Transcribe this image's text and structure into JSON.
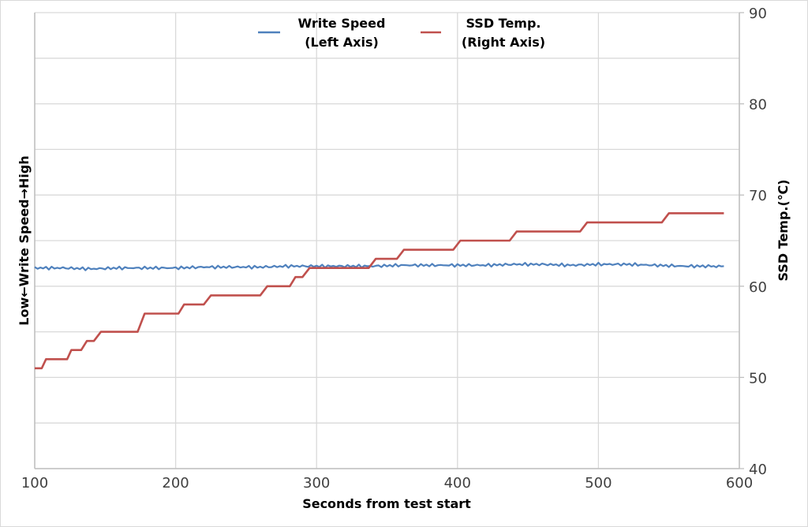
{
  "chart_data": {
    "type": "line",
    "title": "",
    "xlabel": "Seconds from test start",
    "ylabel_left": "Low←Write Speed→High",
    "ylabel_right": "SSD Temp.(℃)",
    "xlim": [
      100,
      600
    ],
    "x_ticks": [
      100,
      200,
      300,
      400,
      500,
      600
    ],
    "ylim_right": [
      40,
      90
    ],
    "y_ticks_right": [
      40,
      50,
      60,
      70,
      80,
      90
    ],
    "grid": true,
    "gridline_step_right": 5,
    "legend_position": "top-center",
    "legend": [
      {
        "name": "Write Speed",
        "sub": "(Left Axis)",
        "color": "#4f81bd"
      },
      {
        "name": "SSD Temp.",
        "sub": "(Right Axis)",
        "color": "#c0504d"
      }
    ],
    "series": [
      {
        "name": "Write Speed (Left Axis)",
        "axis": "left",
        "color": "#4f81bd",
        "note": "no numeric ticks on left axis; values expressed in right-axis-equivalent units for position",
        "x": [
          100,
          120,
          140,
          160,
          180,
          200,
          220,
          240,
          260,
          280,
          300,
          320,
          340,
          360,
          380,
          400,
          420,
          440,
          460,
          480,
          500,
          520,
          540,
          560,
          580,
          589
        ],
        "values": [
          62.0,
          62.0,
          61.9,
          62.0,
          62.0,
          62.0,
          62.1,
          62.1,
          62.1,
          62.2,
          62.2,
          62.2,
          62.2,
          62.3,
          62.3,
          62.3,
          62.3,
          62.4,
          62.4,
          62.3,
          62.4,
          62.4,
          62.3,
          62.2,
          62.2,
          62.2
        ]
      },
      {
        "name": "SSD Temp. (Right Axis)",
        "axis": "right",
        "color": "#c0504d",
        "x": [
          100,
          105,
          108,
          123,
          126,
          133,
          137,
          142,
          147,
          173,
          178,
          202,
          206,
          220,
          225,
          260,
          265,
          281,
          285,
          290,
          295,
          337,
          342,
          357,
          362,
          397,
          402,
          437,
          442,
          487,
          492,
          545,
          550,
          589
        ],
        "values": [
          51,
          51,
          52,
          52,
          53,
          53,
          54,
          54,
          55,
          55,
          57,
          57,
          58,
          58,
          59,
          59,
          60,
          60,
          61,
          61,
          62,
          62,
          63,
          63,
          64,
          64,
          65,
          65,
          66,
          66,
          67,
          67,
          68,
          68
        ]
      }
    ]
  },
  "colors": {
    "write_speed": "#4f81bd",
    "ssd_temp": "#c0504d",
    "grid": "#d9d9d9",
    "tick_text": "#404040"
  }
}
